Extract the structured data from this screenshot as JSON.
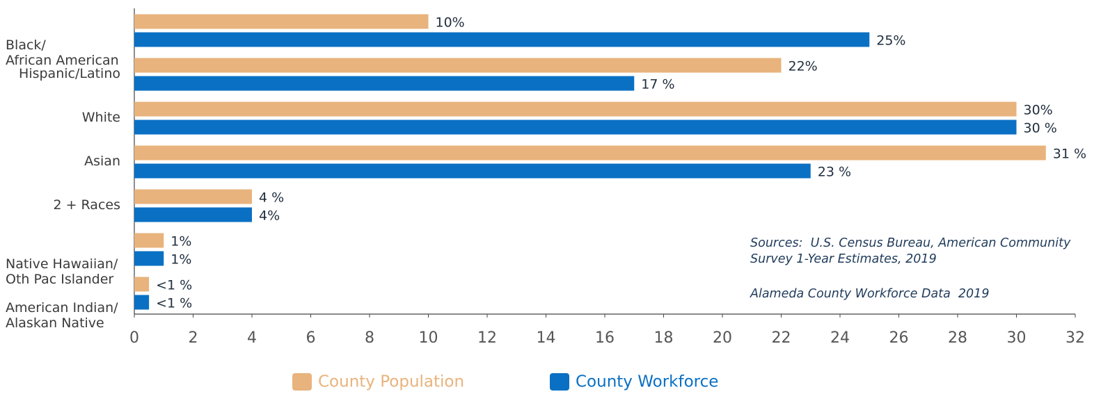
{
  "chart_data": {
    "type": "hbar",
    "categories": [
      "Black/\nAfrican American",
      "Hispanic/Latino",
      "White",
      "Asian",
      "2 + Races",
      "Native Hawaiian/\nOth Pac Islander",
      "American Indian/\nAlaskan Native"
    ],
    "series": [
      {
        "name": "County Population",
        "color": "#e8b37c",
        "values": [
          10,
          22,
          30,
          31,
          4,
          1,
          0.5
        ],
        "value_labels": [
          "10%",
          "22%",
          "30%",
          "31 %",
          "4 %",
          "1%",
          "<1 %"
        ]
      },
      {
        "name": "County Workforce",
        "color": "#0a70c4",
        "values": [
          25,
          17,
          30,
          23,
          4,
          1,
          0.5
        ],
        "value_labels": [
          "25%",
          "17 %",
          "30 %",
          "23 %",
          "4%",
          "1%",
          "<1 %"
        ]
      }
    ],
    "xlim": [
      0,
      32
    ],
    "xticks": [
      0,
      2,
      4,
      6,
      8,
      10,
      12,
      14,
      16,
      18,
      20,
      22,
      24,
      26,
      28,
      30,
      32
    ],
    "grid": false,
    "legend": "bottom",
    "annotations": [
      "Sources:  U.S. Census Bureau, American Community",
      "Survey 1-Year Estimates, 2019",
      "Alameda County Workforce Data  2019"
    ]
  }
}
